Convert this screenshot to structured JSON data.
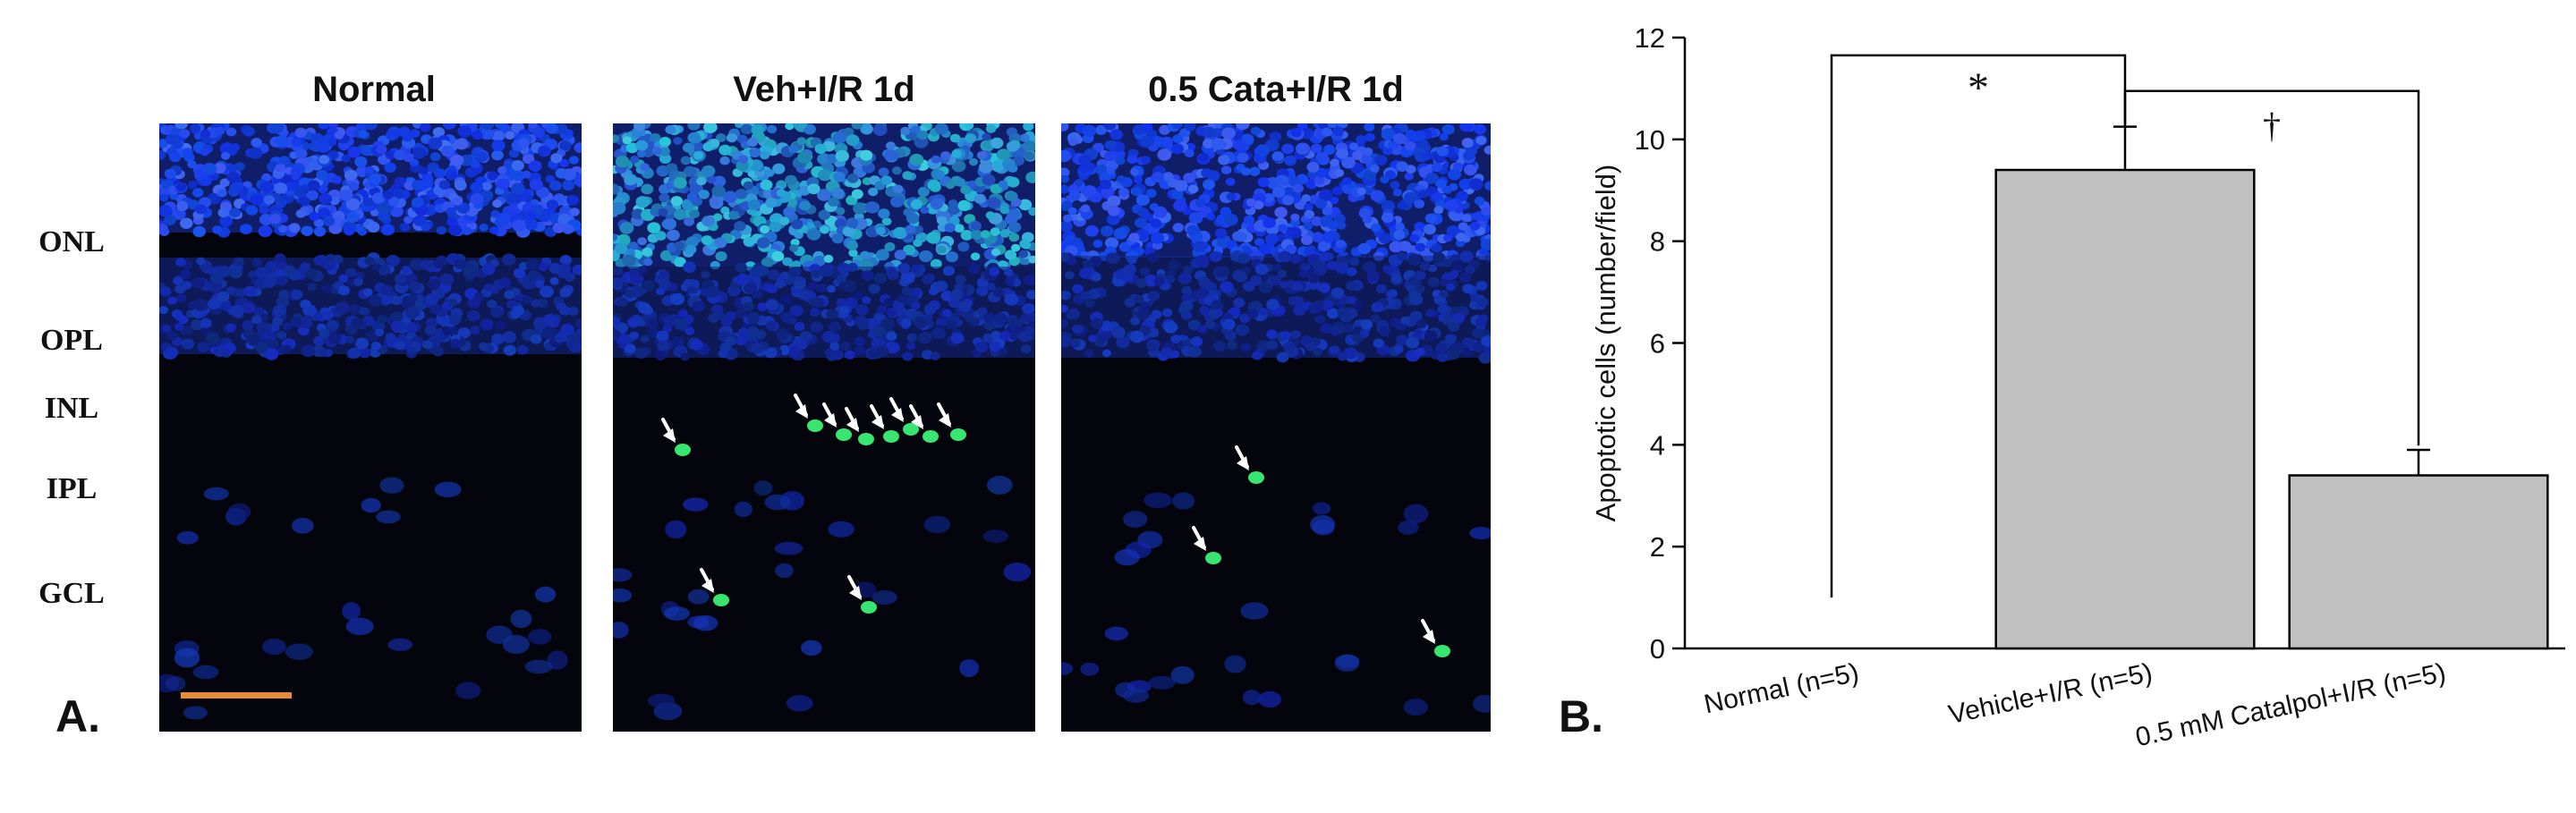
{
  "panel_a": {
    "letter": "A.",
    "titles": [
      "Normal",
      "Veh+I/R 1d",
      "0.5 Cata+I/R 1d"
    ],
    "layers": [
      "ONL",
      "OPL",
      "INL",
      "IPL",
      "GCL"
    ],
    "colors": {
      "nucleus": "#1b3fd6",
      "tunel": "#3cff7a",
      "scale_bar": "#e98a3a",
      "arrow": "#ffffff"
    },
    "icons": [
      "white-arrow-icon"
    ]
  },
  "panel_b": {
    "letter": "B."
  },
  "chart_data": {
    "type": "bar",
    "categories": [
      "Normal (n=5)",
      "Vehicle+I/R (n=5)",
      "0.5 mM Catalpol+I/R (n=5)"
    ],
    "values": [
      0,
      9.4,
      3.4
    ],
    "errors": [
      0,
      0.85,
      0.5
    ],
    "xlabel": "",
    "ylabel": "Apoptotic cells (number/field)",
    "ylim": [
      0,
      12
    ],
    "yticks": [
      0,
      2,
      4,
      6,
      8,
      10,
      12
    ],
    "bar_color": "#c0c0c0",
    "grid": false,
    "annotations": [
      {
        "text": "*",
        "from": 0,
        "to": 1
      },
      {
        "text": "†",
        "from": 1,
        "to": 2
      }
    ]
  }
}
